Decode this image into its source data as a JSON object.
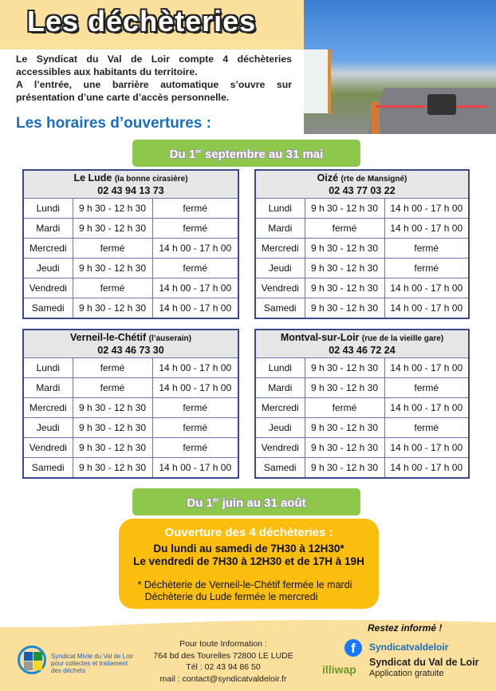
{
  "title": "Les déchèteries",
  "intro": [
    "Le Syndicat du Val de Loir compte 4 déchèteries accessibles aux habitants du territoire.",
    "A l’entrée, une barrière automatique s’ouvre sur présentation d’une carte d’accès personnelle."
  ],
  "subtitle": "Les horaires d’ouvertures :",
  "period1": {
    "pre": "Du 1",
    "sup": "er",
    "post": " septembre au 31 mai"
  },
  "sites": [
    {
      "name": "Le Lude",
      "detail": "(la bonne cirasière)",
      "phone": "02 43 94 13 73",
      "rows": [
        [
          "Lundi",
          "9 h 30 - 12 h 30",
          "fermé"
        ],
        [
          "Mardi",
          "9 h 30 - 12 h 30",
          "fermé"
        ],
        [
          "Mercredi",
          "fermé",
          "14 h 00 - 17 h 00"
        ],
        [
          "Jeudi",
          "9 h 30 - 12 h 30",
          "fermé"
        ],
        [
          "Vendredi",
          "fermé",
          "14 h 00 - 17 h 00"
        ],
        [
          "Samedi",
          "9 h 30 - 12 h 30",
          "14 h 00 - 17 h 00"
        ]
      ]
    },
    {
      "name": "Oizé",
      "detail": "(rte de Mansigné)",
      "phone": "02 43 77 03 22",
      "rows": [
        [
          "Lundi",
          "9 h 30 - 12 h 30",
          "14 h 00 - 17 h 00"
        ],
        [
          "Mardi",
          "fermé",
          "14 h 00 - 17 h 00"
        ],
        [
          "Mercredi",
          "9 h 30 - 12 h 30",
          "fermé"
        ],
        [
          "Jeudi",
          "9 h 30 - 12 h 30",
          "fermé"
        ],
        [
          "Vendredi",
          "9 h 30 - 12 h 30",
          "14 h 00 - 17 h 00"
        ],
        [
          "Samedi",
          "9 h 30 - 12 h 30",
          "14 h 00 - 17 h 00"
        ]
      ]
    },
    {
      "name": "Verneil-le-Chétif",
      "detail": "(l’auserain)",
      "phone": "02 43 46 73 30",
      "rows": [
        [
          "Lundi",
          "fermé",
          "14 h 00 - 17 h 00"
        ],
        [
          "Mardi",
          "fermé",
          "14 h 00 - 17 h 00"
        ],
        [
          "Mercredi",
          "9 h 30 - 12 h 30",
          "fermé"
        ],
        [
          "Jeudi",
          "9 h 30 - 12 h 30",
          "fermé"
        ],
        [
          "Vendredi",
          "9 h 30 - 12 h 30",
          "fermé"
        ],
        [
          "Samedi",
          "9 h 30 - 12 h 30",
          "14 h 00 - 17 h 00"
        ]
      ]
    },
    {
      "name": "Montval-sur-Loir",
      "detail": "(rue de la vieille gare)",
      "phone": "02 43 46 72 24",
      "rows": [
        [
          "Lundi",
          "9 h 30 - 12 h 30",
          "14 h 00 - 17 h 00"
        ],
        [
          "Mardi",
          "9 h 30 - 12 h 30",
          "fermé"
        ],
        [
          "Mercredi",
          "fermé",
          "14 h 00 - 17 h 00"
        ],
        [
          "Jeudi",
          "9 h 30 - 12 h 30",
          "fermé"
        ],
        [
          "Vendredi",
          "9 h 30 - 12 h 30",
          "14 h 00 - 17 h 00"
        ],
        [
          "Samedi",
          "9 h 30 - 12 h 30",
          "14 h 00 - 17 h 00"
        ]
      ]
    }
  ],
  "period2": {
    "pre": "Du 1",
    "sup": "er",
    "post": " juin au 31 août"
  },
  "summer": {
    "heading": "Ouverture des 4 déchèteries :",
    "line1": "Du lundi au samedi de 7H30 à 12H30*",
    "line2": "Le vendredi de 7H30 à 12H30 et  de 17H à 19H",
    "note1": "* Déchèterie de Verneil-le-Chétif fermée le mardi",
    "note2": "Déchèterie du Lude fermée le mercredi"
  },
  "footer": {
    "logo_text": "Syndicat Mixte du Val de Loir pour collectes et traitement des déchets",
    "info": [
      "Pour toute Information :",
      "764 bd des Tourelles 72800 LE LUDE",
      "Tél : 02 43 94 86 50",
      "mail : contact@syndicatvaldeloir.fr"
    ],
    "stay_informed": "Restez informé !",
    "facebook": "Syndicatvaldeloir",
    "app_logo": "illiwap",
    "app_name": "Syndicat du Val de Loir",
    "app_note": "Application gratuite"
  },
  "colors": {
    "banner": "#fbdf9c",
    "accent_blue": "#1a6ec0",
    "green": "#8dc84d",
    "orange": "#fbbd0e",
    "table_border": "#3a4a8a"
  }
}
